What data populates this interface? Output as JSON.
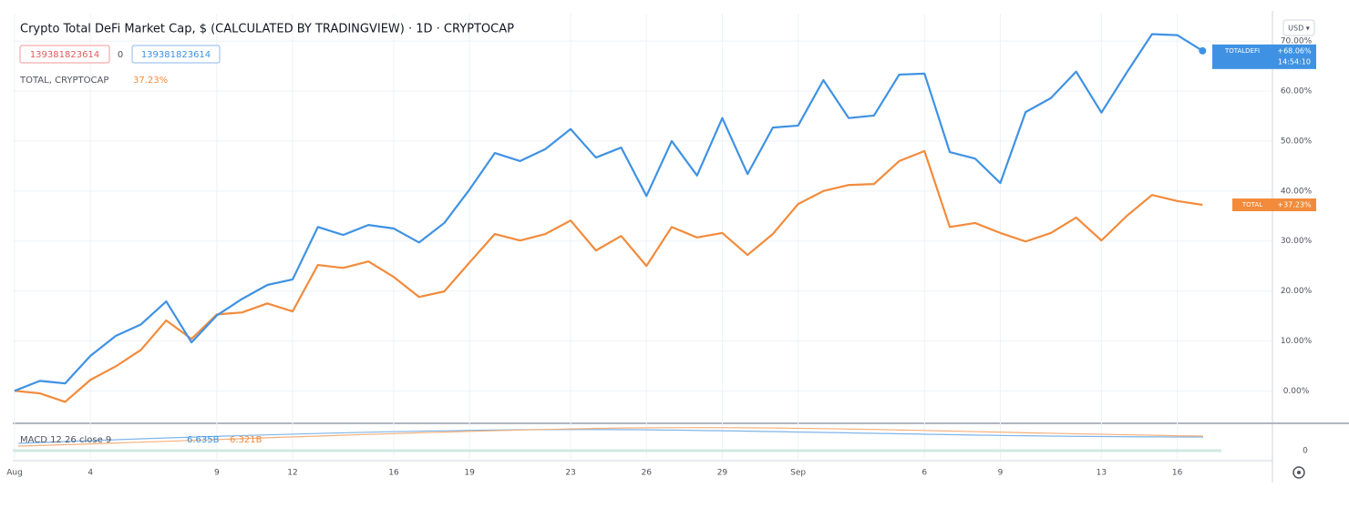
{
  "chart_data": {
    "type": "line",
    "title": "Crypto Total DeFi Market Cap, $ (CALCULATED BY TRADINGVIEW) · 1D · CRYPTOCAP",
    "legend_values": [
      "139381823614",
      "0",
      "139381823614"
    ],
    "compare_label": "TOTAL, CRYPTOCAP",
    "compare_value": "37.23%",
    "currency": "USD ▾",
    "indicator": {
      "name": "MACD 12 26 close 9",
      "values": [
        "6.635B",
        "6.321B"
      ],
      "ytick": 0
    },
    "categories": [
      "Aug",
      null,
      null,
      "4",
      null,
      null,
      null,
      null,
      "9",
      null,
      null,
      "12",
      null,
      null,
      null,
      "16",
      null,
      null,
      "19",
      null,
      null,
      null,
      "23",
      null,
      null,
      "26",
      null,
      null,
      "29",
      null,
      null,
      "Sep",
      null,
      null,
      null,
      null,
      "6",
      null,
      null,
      "9",
      null,
      null,
      null,
      "13",
      null,
      null,
      "16",
      null
    ],
    "series": [
      {
        "name": "TOTALDEFI",
        "color": "#3f92e3",
        "tag": "+68.06%",
        "countdown": "14:54:10",
        "values": [
          0,
          2,
          1.5,
          7,
          11,
          13.3,
          17.9,
          9.7,
          15.1,
          18.4,
          21.2,
          22.3,
          32.8,
          31.2,
          33.2,
          32.5,
          29.7,
          33.6,
          40.3,
          47.6,
          46,
          48.4,
          52.4,
          46.7,
          48.7,
          39,
          50,
          43.1,
          54.6,
          43.4,
          52.7,
          53.1,
          62.2,
          54.6,
          55.1,
          63.3,
          63.5,
          47.8,
          46.5,
          41.6,
          55.8,
          58.6,
          63.9,
          55.7,
          63.7,
          71.4,
          71.2,
          68.06
        ]
      },
      {
        "name": "TOTAL",
        "color": "#f28b3c",
        "tag": "+37.23%",
        "values": [
          0,
          -0.5,
          -2.2,
          2.2,
          4.9,
          8.2,
          14.1,
          10.4,
          15.3,
          15.7,
          17.5,
          15.9,
          25.2,
          24.6,
          25.9,
          22.8,
          18.8,
          19.9,
          25.7,
          31.4,
          30.1,
          31.4,
          34.1,
          28.1,
          31,
          25,
          32.8,
          30.7,
          31.6,
          27.2,
          31.4,
          37.4,
          40,
          41.2,
          41.4,
          46,
          48,
          32.8,
          33.6,
          31.6,
          29.9,
          31.6,
          34.7,
          30.1,
          35,
          39.2,
          38,
          37.23
        ]
      }
    ],
    "ylim": [
      -6.5,
      75.5
    ],
    "yticks": [
      {
        "value": 0,
        "label": "0.00%"
      },
      {
        "value": 10,
        "label": "10.00%"
      },
      {
        "value": 20,
        "label": "20.00%"
      },
      {
        "value": 30,
        "label": "30.00%"
      },
      {
        "value": 40,
        "label": "40.00%"
      },
      {
        "value": 50,
        "label": "50.00%"
      },
      {
        "value": 60,
        "label": "60.00%"
      },
      {
        "value": 70,
        "label": "70.00%"
      }
    ],
    "grid": true
  }
}
